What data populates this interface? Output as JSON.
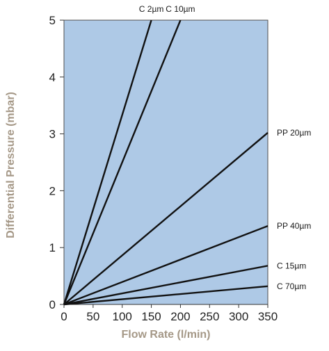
{
  "chart_data": {
    "type": "line",
    "xlabel": "Flow Rate (l/min)",
    "ylabel": "Differential Pressure (mbar)",
    "xlim": [
      0,
      350
    ],
    "ylim": [
      0,
      5
    ],
    "x_ticks": [
      "0",
      "50",
      "100",
      "150",
      "200",
      "250",
      "300",
      "350"
    ],
    "y_ticks": [
      "0",
      "1",
      "2",
      "3",
      "4",
      "5"
    ],
    "grid": false,
    "colors": {
      "plot_background": "#aec9e6",
      "line": "#111111",
      "axis_title": "#a59887"
    },
    "series": [
      {
        "name": "C 2µm",
        "x": [
          0,
          150
        ],
        "y": [
          0,
          5.0
        ]
      },
      {
        "name": "C 10µm",
        "x": [
          0,
          200
        ],
        "y": [
          0,
          5.0
        ]
      },
      {
        "name": "PP 20µm",
        "x": [
          0,
          350
        ],
        "y": [
          0,
          3.02
        ]
      },
      {
        "name": "PP 40µm",
        "x": [
          0,
          350
        ],
        "y": [
          0,
          1.38
        ]
      },
      {
        "name": "C 15µm",
        "x": [
          0,
          350
        ],
        "y": [
          0,
          0.68
        ]
      },
      {
        "name": "C 70µm",
        "x": [
          0,
          350
        ],
        "y": [
          0,
          0.32
        ]
      }
    ]
  }
}
